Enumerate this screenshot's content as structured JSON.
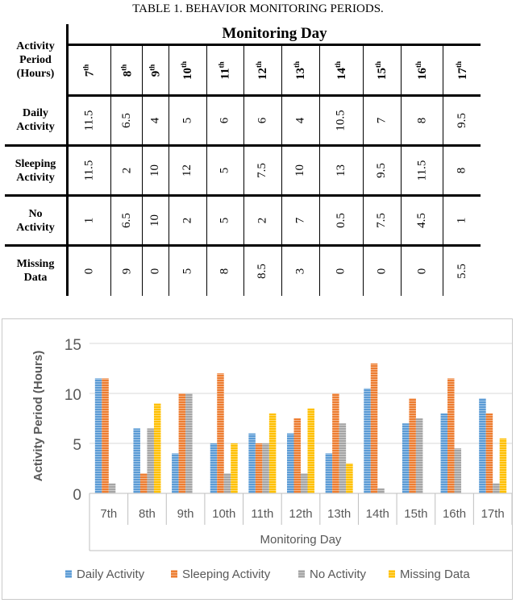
{
  "caption": "TABLE 1. BEHAVIOR MONITORING PERIODS.",
  "table": {
    "row_header": [
      "Activity",
      "Period",
      "(Hours)"
    ],
    "group_header": "Monitoring Day",
    "days": [
      {
        "n": "7",
        "s": "th"
      },
      {
        "n": "8",
        "s": "th"
      },
      {
        "n": "9",
        "s": "th"
      },
      {
        "n": "10",
        "s": "th"
      },
      {
        "n": "11",
        "s": "th"
      },
      {
        "n": "12",
        "s": "th"
      },
      {
        "n": "13",
        "s": "th"
      },
      {
        "n": "14",
        "s": "th"
      },
      {
        "n": "15",
        "s": "th"
      },
      {
        "n": "16",
        "s": "th"
      },
      {
        "n": "17",
        "s": "th"
      }
    ],
    "rows": [
      {
        "label": [
          "Daily",
          "Activity"
        ],
        "values": [
          "11.5",
          "6.5",
          "4",
          "5",
          "6",
          "6",
          "4",
          "10.5",
          "7",
          "8",
          "9.5"
        ]
      },
      {
        "label": [
          "Sleeping",
          "Activity"
        ],
        "values": [
          "11.5",
          "2",
          "10",
          "12",
          "5",
          "7.5",
          "10",
          "13",
          "9.5",
          "11.5",
          "8"
        ]
      },
      {
        "label": [
          "No",
          "Activity"
        ],
        "values": [
          "1",
          "6.5",
          "10",
          "2",
          "5",
          "2",
          "7",
          "0.5",
          "7.5",
          "4.5",
          "1"
        ]
      },
      {
        "label": [
          "Missing",
          "Data"
        ],
        "values": [
          "0",
          "9",
          "0",
          "5",
          "8",
          "8.5",
          "3",
          "0",
          "0",
          "0",
          "5.5"
        ]
      }
    ]
  },
  "chart_data": {
    "type": "bar",
    "title": "",
    "xlabel": "Monitoring Day",
    "ylabel": "Activity Period (Hours)",
    "ylim": [
      0,
      15
    ],
    "yticks": [
      "0",
      "5",
      "10",
      "15"
    ],
    "grid": true,
    "legend_position": "bottom",
    "categories": [
      "7th",
      "8th",
      "9th",
      "10th",
      "11th",
      "12th",
      "13th",
      "14th",
      "15th",
      "16th",
      "17th"
    ],
    "series": [
      {
        "name": "Daily Activity",
        "color": "#5b9bd5",
        "values": [
          11.5,
          6.5,
          4,
          5,
          6,
          6,
          4,
          10.5,
          7,
          8,
          9.5
        ]
      },
      {
        "name": "Sleeping Activity",
        "color": "#ed7d31",
        "values": [
          11.5,
          2,
          10,
          12,
          5,
          7.5,
          10,
          13,
          9.5,
          11.5,
          8
        ]
      },
      {
        "name": "No Activity",
        "color": "#a5a5a5",
        "values": [
          1,
          6.5,
          10,
          2,
          5,
          2,
          7,
          0.5,
          7.5,
          4.5,
          1
        ]
      },
      {
        "name": "Missing Data",
        "color": "#ffc000",
        "values": [
          0,
          9,
          0,
          5,
          8,
          8.5,
          3,
          0,
          0,
          0,
          5.5
        ]
      }
    ]
  }
}
